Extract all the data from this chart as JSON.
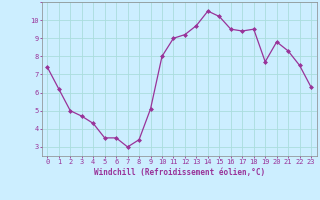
{
  "x": [
    0,
    1,
    2,
    3,
    4,
    5,
    6,
    7,
    8,
    9,
    10,
    11,
    12,
    13,
    14,
    15,
    16,
    17,
    18,
    19,
    20,
    21,
    22,
    23
  ],
  "y": [
    7.4,
    6.2,
    5.0,
    4.7,
    4.3,
    3.5,
    3.5,
    3.0,
    3.4,
    5.1,
    8.0,
    9.0,
    9.2,
    9.7,
    10.5,
    10.2,
    9.5,
    9.4,
    9.5,
    7.7,
    8.8,
    8.3,
    7.5,
    6.3
  ],
  "line_color": "#993399",
  "marker": "D",
  "marker_size": 2.0,
  "line_width": 0.9,
  "bg_color": "#cceeff",
  "grid_color": "#aadddd",
  "xlabel": "Windchill (Refroidissement éolien,°C)",
  "xlabel_color": "#993399",
  "tick_color": "#993399",
  "ylim": [
    2.5,
    11.0
  ],
  "xlim": [
    -0.5,
    23.5
  ],
  "yticks": [
    3,
    4,
    5,
    6,
    7,
    8,
    9,
    10
  ],
  "xticks": [
    0,
    1,
    2,
    3,
    4,
    5,
    6,
    7,
    8,
    9,
    10,
    11,
    12,
    13,
    14,
    15,
    16,
    17,
    18,
    19,
    20,
    21,
    22,
    23
  ],
  "tick_fontsize": 5.0,
  "xlabel_fontsize": 5.5
}
